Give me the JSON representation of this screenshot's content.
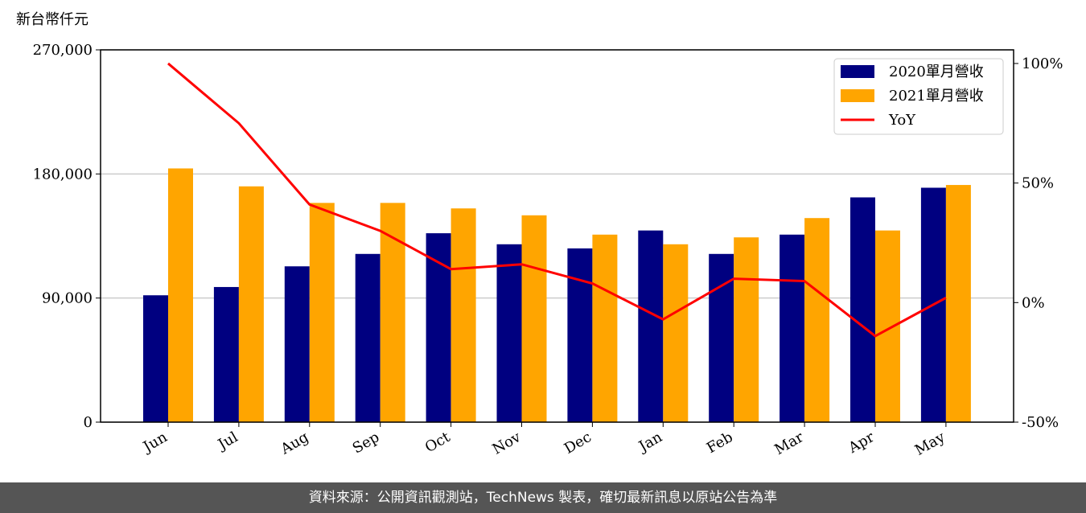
{
  "chart_data": {
    "type": "bar",
    "y_label": "新台幣仟元",
    "categories": [
      "Jun",
      "Jul",
      "Aug",
      "Sep",
      "Oct",
      "Nov",
      "Dec",
      "Jan",
      "Feb",
      "Mar",
      "Apr",
      "May"
    ],
    "series": [
      {
        "name": "2020單月營收",
        "color": "#000080",
        "values": [
          92000,
          98000,
          113000,
          122000,
          137000,
          129000,
          126000,
          139000,
          122000,
          136000,
          163000,
          170000
        ]
      },
      {
        "name": "2021單月營收",
        "color": "#ffa500",
        "values": [
          184000,
          171000,
          159000,
          159000,
          155000,
          150000,
          136000,
          129000,
          134000,
          148000,
          139000,
          172000
        ]
      },
      {
        "name": "YoY",
        "color": "#ff0000",
        "type": "line",
        "axis": "y2",
        "values": [
          100,
          75,
          41,
          30,
          14,
          16,
          8,
          -7,
          10,
          9,
          -14,
          2
        ]
      }
    ],
    "ylim": [
      0,
      270000
    ],
    "yticks": [
      {
        "value": 0,
        "label": "0"
      },
      {
        "value": 90000,
        "label": "90,000"
      },
      {
        "value": 180000,
        "label": "180,000"
      },
      {
        "value": 270000,
        "label": "270,000"
      }
    ],
    "y2lim": [
      -50,
      105.7
    ],
    "y2ticks": [
      {
        "value": -50,
        "label": "-50%"
      },
      {
        "value": 0,
        "label": "0%"
      },
      {
        "value": 50,
        "label": "50%"
      },
      {
        "value": 100,
        "label": "100%"
      }
    ],
    "grid": true,
    "legend": "upper right"
  },
  "footer": "資料來源：公開資訊觀測站，TechNews 製表，確切最新訊息以原站公告為準"
}
